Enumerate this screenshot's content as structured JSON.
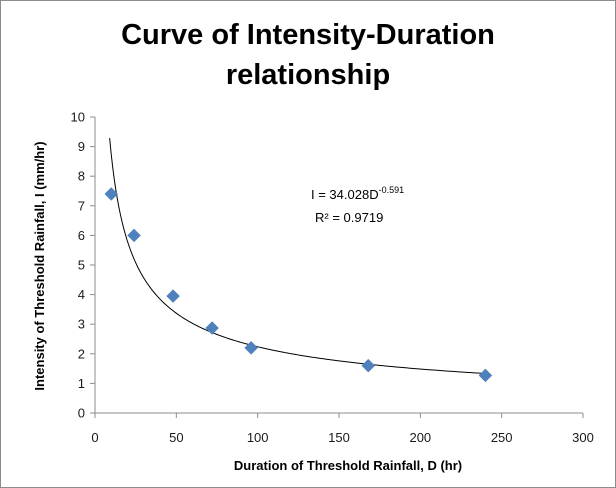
{
  "chart_data": {
    "type": "scatter",
    "title": "Curve of Intensity-Duration relationship",
    "title_lines": [
      "Curve of Intensity-Duration",
      "relationship"
    ],
    "xlabel": "Duration of Threshold Rainfall, D (hr)",
    "ylabel": "Intensity of Threshold Rainfall, I (mm/hr)",
    "xlim": [
      0,
      300
    ],
    "ylim": [
      0,
      10
    ],
    "x_ticks": [
      0,
      50,
      100,
      150,
      200,
      250,
      300
    ],
    "y_ticks": [
      0,
      1,
      2,
      3,
      4,
      5,
      6,
      7,
      8,
      9,
      10
    ],
    "grid": false,
    "legend": "none",
    "marker_color": "#4f81bd",
    "trendline_color": "#000000",
    "series": [
      {
        "x": [
          10,
          24,
          48,
          72,
          96,
          168,
          240
        ],
        "y": [
          7.4,
          6.0,
          3.95,
          2.87,
          2.2,
          1.6,
          1.27
        ]
      }
    ],
    "trendline": {
      "type": "power",
      "coefficient": 34.028,
      "exponent": -0.591,
      "x_range": [
        9,
        240
      ]
    },
    "annotation": {
      "equation_prefix": "I = 34.028D",
      "equation_exponent": "-0.591",
      "r_squared": "R² = 0.9719"
    }
  }
}
